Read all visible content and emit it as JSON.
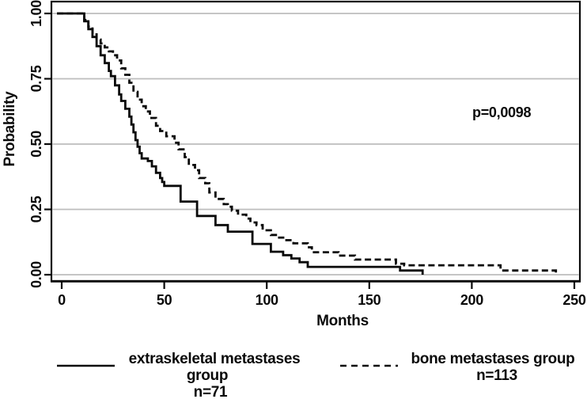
{
  "chart_data": {
    "type": "line",
    "subtype": "kaplan-meier-step",
    "title": "",
    "xlabel": "Months",
    "ylabel": "Probability",
    "annotation": "p=0,0098",
    "x_tick_labels": [
      "0",
      "50",
      "100",
      "150",
      "200",
      "250"
    ],
    "y_tick_labels_top_down": [
      "1.00",
      "0.75",
      "0.50",
      "0.25",
      "0.00"
    ],
    "xlim": [
      0,
      250
    ],
    "ylim": [
      0,
      1
    ],
    "grid": "horizontal",
    "legend_position": "bottom",
    "colors": {
      "line": "#0a0a0a",
      "grid": "#bdbdbd",
      "background": "#ffffff"
    },
    "series": [
      {
        "name": "extraskeletal metastases group",
        "n": "n=71",
        "style": "solid",
        "points": [
          [
            0,
            1.0
          ],
          [
            11,
            0.97
          ],
          [
            13,
            0.94
          ],
          [
            15,
            0.91
          ],
          [
            17,
            0.875
          ],
          [
            19,
            0.84
          ],
          [
            21,
            0.81
          ],
          [
            23,
            0.78
          ],
          [
            24,
            0.76
          ],
          [
            26,
            0.725
          ],
          [
            28,
            0.69
          ],
          [
            29,
            0.665
          ],
          [
            31,
            0.635
          ],
          [
            33,
            0.605
          ],
          [
            34,
            0.575
          ],
          [
            35,
            0.545
          ],
          [
            36,
            0.515
          ],
          [
            37,
            0.49
          ],
          [
            38,
            0.465
          ],
          [
            39,
            0.445
          ],
          [
            42,
            0.435
          ],
          [
            44,
            0.415
          ],
          [
            46,
            0.39
          ],
          [
            48,
            0.37
          ],
          [
            49,
            0.355
          ],
          [
            50,
            0.34
          ],
          [
            58,
            0.28
          ],
          [
            66,
            0.225
          ],
          [
            75,
            0.19
          ],
          [
            81,
            0.165
          ],
          [
            93,
            0.118
          ],
          [
            102,
            0.088
          ],
          [
            108,
            0.075
          ],
          [
            112,
            0.062
          ],
          [
            116,
            0.048
          ],
          [
            120,
            0.03
          ],
          [
            165,
            0.016
          ],
          [
            176,
            0.0
          ]
        ]
      },
      {
        "name": "bone metastases group",
        "n": "n=113",
        "style": "dashed",
        "points": [
          [
            0,
            1.0
          ],
          [
            11,
            0.975
          ],
          [
            13,
            0.95
          ],
          [
            15,
            0.92
          ],
          [
            17,
            0.9
          ],
          [
            19,
            0.885
          ],
          [
            21,
            0.87
          ],
          [
            23,
            0.855
          ],
          [
            25,
            0.84
          ],
          [
            27,
            0.82
          ],
          [
            29,
            0.79
          ],
          [
            31,
            0.765
          ],
          [
            33,
            0.735
          ],
          [
            35,
            0.7
          ],
          [
            37,
            0.67
          ],
          [
            39,
            0.645
          ],
          [
            41,
            0.625
          ],
          [
            43,
            0.6
          ],
          [
            46,
            0.57
          ],
          [
            48,
            0.55
          ],
          [
            51,
            0.53
          ],
          [
            55,
            0.505
          ],
          [
            57,
            0.48
          ],
          [
            60,
            0.45
          ],
          [
            62,
            0.42
          ],
          [
            65,
            0.4
          ],
          [
            67,
            0.37
          ],
          [
            70,
            0.35
          ],
          [
            72,
            0.315
          ],
          [
            75,
            0.29
          ],
          [
            79,
            0.27
          ],
          [
            81,
            0.26
          ],
          [
            83,
            0.245
          ],
          [
            86,
            0.23
          ],
          [
            90,
            0.215
          ],
          [
            92,
            0.2
          ],
          [
            95,
            0.19
          ],
          [
            98,
            0.17
          ],
          [
            102,
            0.152
          ],
          [
            105,
            0.142
          ],
          [
            109,
            0.132
          ],
          [
            113,
            0.12
          ],
          [
            120,
            0.105
          ],
          [
            122,
            0.086
          ],
          [
            135,
            0.073
          ],
          [
            143,
            0.058
          ],
          [
            163,
            0.042
          ],
          [
            167,
            0.036
          ],
          [
            214,
            0.016
          ],
          [
            241,
            0.005
          ]
        ]
      }
    ],
    "legend": [
      {
        "label_lines": [
          "extraskeletal metastases",
          "group"
        ],
        "n": "n=71",
        "style": "solid"
      },
      {
        "label_lines": [
          "bone metastases group"
        ],
        "n": "n=113",
        "style": "dashed"
      }
    ]
  }
}
